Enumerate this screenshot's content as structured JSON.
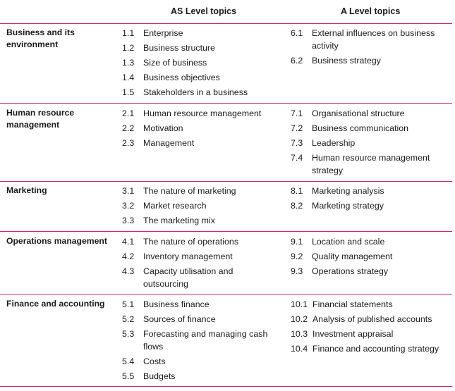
{
  "headers": {
    "as_level": "AS Level topics",
    "a_level": "A Level topics"
  },
  "sections": [
    {
      "title": "Business and its environment",
      "as_items": [
        {
          "num": "1.1",
          "text": "Enterprise"
        },
        {
          "num": "1.2",
          "text": "Business structure"
        },
        {
          "num": "1.3",
          "text": "Size of business"
        },
        {
          "num": "1.4",
          "text": "Business objectives"
        },
        {
          "num": "1.5",
          "text": "Stakeholders in a business"
        }
      ],
      "a_items": [
        {
          "num": "6.1",
          "text": "External influences on business activity"
        },
        {
          "num": "6.2",
          "text": "Business strategy"
        }
      ]
    },
    {
      "title": "Human resource management",
      "as_items": [
        {
          "num": "2.1",
          "text": "Human resource management"
        },
        {
          "num": "2.2",
          "text": "Motivation"
        },
        {
          "num": "2.3",
          "text": "Management"
        }
      ],
      "a_items": [
        {
          "num": "7.1",
          "text": "Organisational structure"
        },
        {
          "num": "7.2",
          "text": "Business communication"
        },
        {
          "num": "7.3",
          "text": "Leadership"
        },
        {
          "num": "7.4",
          "text": "Human resource management strategy"
        }
      ]
    },
    {
      "title": "Marketing",
      "as_items": [
        {
          "num": "3.1",
          "text": "The nature of marketing"
        },
        {
          "num": "3.2",
          "text": "Market research"
        },
        {
          "num": "3.3",
          "text": "The marketing mix"
        }
      ],
      "a_items": [
        {
          "num": "8.1",
          "text": "Marketing analysis"
        },
        {
          "num": "8.2",
          "text": "Marketing strategy"
        }
      ]
    },
    {
      "title": "Operations management",
      "as_items": [
        {
          "num": "4.1",
          "text": "The nature of operations"
        },
        {
          "num": "4.2",
          "text": "Inventory management"
        },
        {
          "num": "4.3",
          "text": "Capacity utilisation and outsourcing"
        }
      ],
      "a_items": [
        {
          "num": "9.1",
          "text": "Location and scale"
        },
        {
          "num": "9.2",
          "text": "Quality management"
        },
        {
          "num": "9.3",
          "text": "Operations strategy"
        }
      ]
    },
    {
      "title": "Finance and accounting",
      "as_items": [
        {
          "num": "5.1",
          "text": "Business finance"
        },
        {
          "num": "5.2",
          "text": "Sources of finance"
        },
        {
          "num": "5.3",
          "text": "Forecasting and managing cash flows"
        },
        {
          "num": "5.4",
          "text": "Costs"
        },
        {
          "num": "5.5",
          "text": "Budgets"
        }
      ],
      "a_items": [
        {
          "num": "10.1",
          "text": "Financial statements"
        },
        {
          "num": "10.2",
          "text": "Analysis of published accounts"
        },
        {
          "num": "10.3",
          "text": "Investment appraisal"
        },
        {
          "num": "10.4",
          "text": "Finance and accounting strategy"
        }
      ]
    }
  ],
  "colors": {
    "rule": "#d6205a",
    "text": "#1a1a1a"
  }
}
